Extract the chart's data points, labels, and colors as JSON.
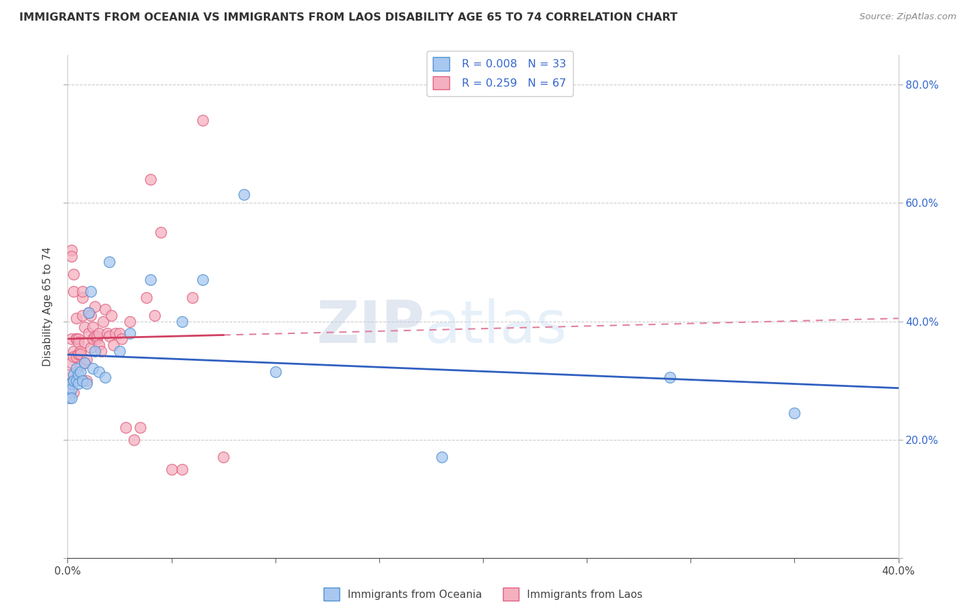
{
  "title": "IMMIGRANTS FROM OCEANIA VS IMMIGRANTS FROM LAOS DISABILITY AGE 65 TO 74 CORRELATION CHART",
  "source": "Source: ZipAtlas.com",
  "ylabel": "Disability Age 65 to 74",
  "xlim": [
    0.0,
    0.4
  ],
  "ylim": [
    0.0,
    0.85
  ],
  "x_ticks": [
    0.0,
    0.05,
    0.1,
    0.15,
    0.2,
    0.25,
    0.3,
    0.35,
    0.4
  ],
  "y_ticks": [
    0.0,
    0.2,
    0.4,
    0.6,
    0.8
  ],
  "grid_color": "#cccccc",
  "background_color": "#ffffff",
  "oceania_color": "#a8c8f0",
  "laos_color": "#f5b0c0",
  "oceania_edge_color": "#5090d0",
  "laos_edge_color": "#e06080",
  "oceania_line_color": "#3060c0",
  "laos_line_color": "#d04060",
  "laos_dash_color": "#e080a0",
  "R_oceania": 0.008,
  "N_oceania": 33,
  "R_laos": 0.259,
  "N_laos": 67,
  "watermark_zip": "ZIP",
  "watermark_atlas": "atlas",
  "oceania_x": [
    0.001,
    0.001,
    0.001,
    0.002,
    0.002,
    0.002,
    0.003,
    0.003,
    0.004,
    0.004,
    0.005,
    0.005,
    0.006,
    0.007,
    0.008,
    0.009,
    0.01,
    0.011,
    0.012,
    0.013,
    0.015,
    0.018,
    0.02,
    0.025,
    0.03,
    0.04,
    0.055,
    0.065,
    0.085,
    0.1,
    0.18,
    0.29,
    0.35
  ],
  "oceania_y": [
    0.295,
    0.28,
    0.27,
    0.295,
    0.285,
    0.27,
    0.31,
    0.3,
    0.32,
    0.3,
    0.31,
    0.295,
    0.315,
    0.3,
    0.33,
    0.295,
    0.415,
    0.45,
    0.32,
    0.35,
    0.315,
    0.305,
    0.5,
    0.35,
    0.38,
    0.47,
    0.4,
    0.47,
    0.615,
    0.315,
    0.17,
    0.305,
    0.245
  ],
  "laos_x": [
    0.001,
    0.001,
    0.001,
    0.001,
    0.002,
    0.002,
    0.002,
    0.002,
    0.003,
    0.003,
    0.003,
    0.003,
    0.003,
    0.004,
    0.004,
    0.004,
    0.004,
    0.005,
    0.005,
    0.005,
    0.005,
    0.006,
    0.006,
    0.006,
    0.007,
    0.007,
    0.007,
    0.008,
    0.008,
    0.008,
    0.009,
    0.009,
    0.01,
    0.01,
    0.011,
    0.011,
    0.012,
    0.012,
    0.013,
    0.013,
    0.014,
    0.014,
    0.015,
    0.015,
    0.016,
    0.017,
    0.018,
    0.019,
    0.02,
    0.021,
    0.022,
    0.023,
    0.025,
    0.026,
    0.028,
    0.03,
    0.032,
    0.035,
    0.038,
    0.04,
    0.042,
    0.045,
    0.05,
    0.055,
    0.06,
    0.065,
    0.075
  ],
  "laos_y": [
    0.275,
    0.31,
    0.295,
    0.285,
    0.52,
    0.51,
    0.37,
    0.33,
    0.48,
    0.45,
    0.35,
    0.34,
    0.28,
    0.34,
    0.37,
    0.405,
    0.37,
    0.345,
    0.345,
    0.37,
    0.365,
    0.35,
    0.325,
    0.345,
    0.44,
    0.45,
    0.41,
    0.365,
    0.39,
    0.33,
    0.335,
    0.3,
    0.38,
    0.415,
    0.355,
    0.41,
    0.37,
    0.39,
    0.375,
    0.425,
    0.37,
    0.375,
    0.36,
    0.38,
    0.35,
    0.4,
    0.42,
    0.38,
    0.375,
    0.41,
    0.36,
    0.38,
    0.38,
    0.37,
    0.22,
    0.4,
    0.2,
    0.22,
    0.44,
    0.64,
    0.41,
    0.55,
    0.15,
    0.15,
    0.44,
    0.74,
    0.17
  ]
}
